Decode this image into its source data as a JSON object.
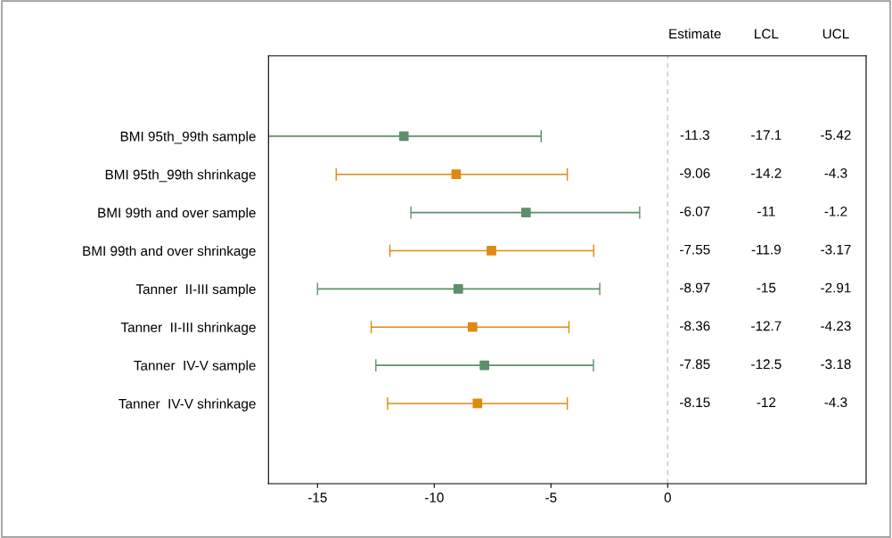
{
  "chart_data": {
    "type": "scatter",
    "orientation": "horizontal",
    "categories": [
      "BMI 95th_99th sample",
      "BMI 95th_99th shrinkage",
      "BMI 99th and over sample",
      "BMI 99th and over shrinkage",
      "Tanner  II-III sample",
      "Tanner  II-III shrinkage",
      "Tanner  IV-V sample",
      "Tanner  IV-V shrinkage"
    ],
    "values": [
      -11.3,
      -9.06,
      -6.07,
      -7.55,
      -8.97,
      -8.36,
      -7.85,
      -8.15
    ],
    "errors": [
      [
        -17.1,
        -5.42
      ],
      [
        -14.2,
        -4.3
      ],
      [
        -11,
        -1.2
      ],
      [
        -11.9,
        -3.17
      ],
      [
        -15,
        -2.91
      ],
      [
        -12.7,
        -4.23
      ],
      [
        -12.5,
        -3.18
      ],
      [
        -12,
        -4.3
      ]
    ],
    "colors": [
      "#5e8f6b",
      "#dd8a12",
      "#5e8f6b",
      "#dd8a12",
      "#5e8f6b",
      "#dd8a12",
      "#5e8f6b",
      "#dd8a12"
    ],
    "xlim": [
      -17.1,
      8.5
    ],
    "xticks": [
      -15,
      -10,
      -5,
      0
    ],
    "ref_lines": [
      {
        "axis": "x",
        "value": 0,
        "color": "#c8c8c8",
        "line_style": "dashed"
      }
    ],
    "annotations": [
      "Estimate",
      "LCL",
      "UCL",
      "-11.3",
      "-17.1",
      "-5.42",
      "-9.06",
      "-14.2",
      "-4.3",
      "-6.07",
      "-11",
      "-1.2",
      "-7.55",
      "-11.9",
      "-3.17",
      "-8.97",
      "-15",
      "-2.91",
      "-8.36",
      "-12.7",
      "-4.23",
      "-7.85",
      "-12.5",
      "-3.18",
      "-8.15",
      "-12",
      "-4.3"
    ],
    "marker": "square",
    "grid": false,
    "legend": false
  }
}
